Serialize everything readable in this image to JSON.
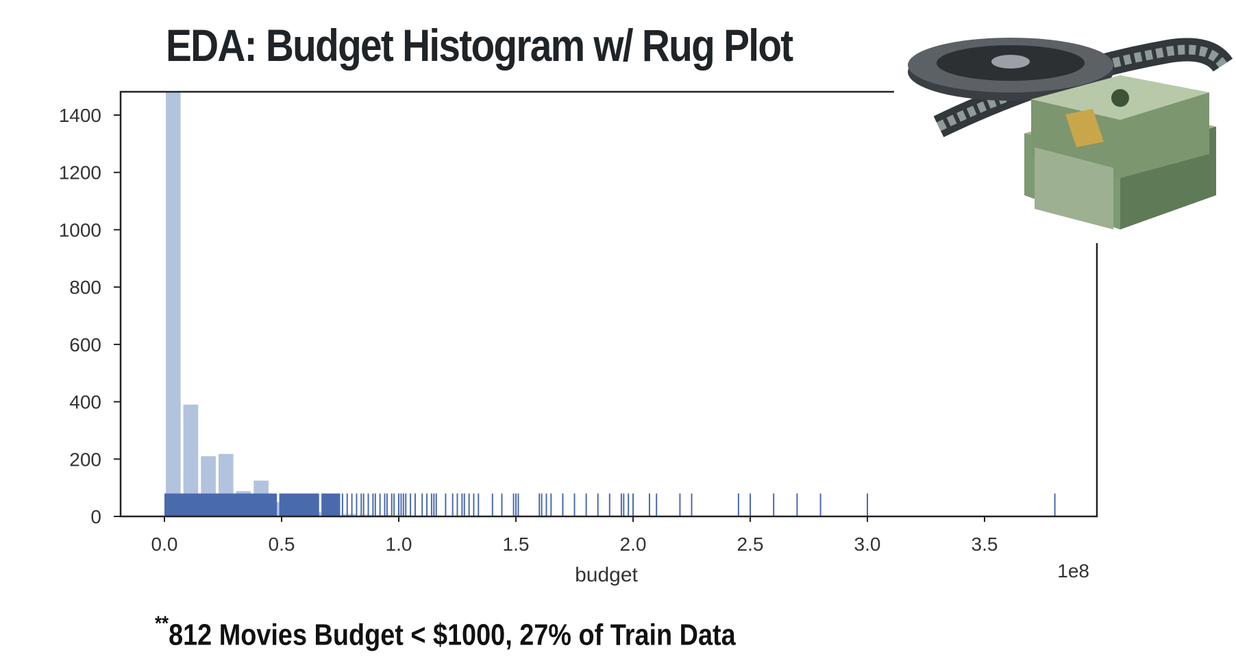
{
  "slide": {
    "title": "EDA:  Budget Histogram w/ Rug Plot",
    "footnote_marker": "**",
    "footnote": "812  Movies   Budget <  $1000,  27% of Train Data"
  },
  "chart_data": {
    "type": "histogram",
    "xlabel": "budget",
    "x_offset_label": "1e8",
    "xlim": [
      -0.18,
      4.0
    ],
    "ylim": [
      0,
      1470
    ],
    "x_ticks": [
      0.0,
      0.5,
      1.0,
      1.5,
      2.0,
      2.5,
      3.0,
      3.5
    ],
    "x_tick_labels": [
      "0.0",
      "0.5",
      "1.0",
      "1.5",
      "2.0",
      "2.5",
      "3.0",
      "3.5"
    ],
    "y_ticks": [
      0,
      200,
      400,
      600,
      800,
      1000,
      1200,
      1400
    ],
    "y_tick_labels": [
      "0",
      "200",
      "400",
      "600",
      "800",
      "1000",
      "1200",
      "1400"
    ],
    "bin_width": 0.075,
    "bins": [
      {
        "start": 0.0,
        "count": 1480
      },
      {
        "start": 0.075,
        "count": 390
      },
      {
        "start": 0.15,
        "count": 210
      },
      {
        "start": 0.225,
        "count": 218
      },
      {
        "start": 0.3,
        "count": 88
      },
      {
        "start": 0.375,
        "count": 125
      },
      {
        "start": 0.45,
        "count": 50
      },
      {
        "start": 0.525,
        "count": 22
      },
      {
        "start": 0.6,
        "count": 15
      },
      {
        "start": 0.675,
        "count": 10
      },
      {
        "start": 0.75,
        "count": 8
      },
      {
        "start": 0.825,
        "count": 6
      },
      {
        "start": 0.9,
        "count": 5
      },
      {
        "start": 0.975,
        "count": 4
      },
      {
        "start": 1.05,
        "count": 3
      }
    ],
    "rug": {
      "height": 80,
      "dense_ranges": [
        [
          0.0,
          0.48
        ],
        [
          0.49,
          0.66
        ],
        [
          0.67,
          0.75
        ]
      ],
      "ticks": [
        0.76,
        0.78,
        0.8,
        0.82,
        0.84,
        0.85,
        0.87,
        0.89,
        0.9,
        0.92,
        0.94,
        0.95,
        0.97,
        0.98,
        1.0,
        1.01,
        1.02,
        1.03,
        1.05,
        1.07,
        1.1,
        1.12,
        1.14,
        1.15,
        1.16,
        1.2,
        1.23,
        1.25,
        1.27,
        1.28,
        1.3,
        1.32,
        1.34,
        1.4,
        1.44,
        1.49,
        1.5,
        1.51,
        1.6,
        1.61,
        1.63,
        1.65,
        1.7,
        1.75,
        1.8,
        1.85,
        1.9,
        1.95,
        1.96,
        1.98,
        2.0,
        2.07,
        2.1,
        2.2,
        2.25,
        2.45,
        2.5,
        2.6,
        2.7,
        2.8,
        3.0,
        3.8
      ]
    },
    "hist_color": "#b2c3de",
    "rug_color": "#4a6aae",
    "grid": false
  },
  "decoration": {
    "image_icon": "film-reel-and-cash-image"
  }
}
